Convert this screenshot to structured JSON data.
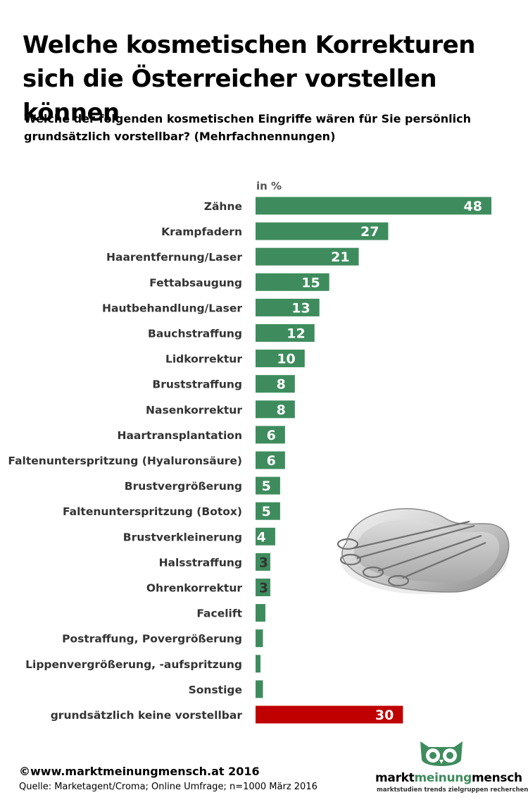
{
  "header": {
    "title": "Welche kosmetischen Korrekturen sich die Österreicher vorstellen können",
    "subtitle": "Welche der folgenden kosmetischen Eingriffe wären für Sie persönlich grundsätzlich vorstellbar? (Mehrfachnennungen)"
  },
  "chart_data": {
    "type": "bar",
    "orientation": "horizontal",
    "unit_label": "in %",
    "categories": [
      "Zähne",
      "Krampfadern",
      "Haarentfernung/Laser",
      "Fettabsaugung",
      "Hautbehandlung/Laser",
      "Bauchstraffung",
      "Lidkorrektur",
      "Bruststraffung",
      "Nasenkorrektur",
      "Haartransplantation",
      "Faltenunterspritzung (Hyaluronsäure)",
      "Brustvergrößerung",
      "Faltenunterspritzung (Botox)",
      "Brustverkleinerung",
      "Halsstraffung",
      "Ohrenkorrektur",
      "Facelift",
      "Postraffung, Povergrößerung",
      "Lippenvergrößerung, -aufspritzung",
      "Sonstige",
      "grundsätzlich keine vorstellbar"
    ],
    "values": [
      48,
      27,
      21,
      15,
      13,
      12,
      10,
      8,
      8,
      6,
      6,
      5,
      5,
      4,
      3,
      3,
      2,
      1.5,
      1,
      1.5,
      30
    ],
    "value_labels": [
      "48",
      "27",
      "21",
      "15",
      "13",
      "12",
      "10",
      "8",
      "8",
      "6",
      "6",
      "5",
      "5",
      "4",
      "3",
      "3",
      "",
      "",
      "",
      "",
      "30"
    ],
    "colors": {
      "default": "#3e8c5d",
      "highlight": "#c00000"
    },
    "highlight_categories": [
      "grundsätzlich keine vorstellbar"
    ],
    "xlim": [
      0,
      48
    ],
    "grid": false,
    "legend": "none"
  },
  "footer": {
    "copyright": "©www.marktmeinungmensch.at 2016",
    "source": "Quelle: Marketagent/Croma;  Online Umfrage; n=1000 März 2016"
  },
  "logo": {
    "part1": "markt",
    "part2": "meinung",
    "part3": "mensch",
    "tagline": "marktstudien trends zielgruppen recherchen",
    "icon": "owl-icon"
  }
}
